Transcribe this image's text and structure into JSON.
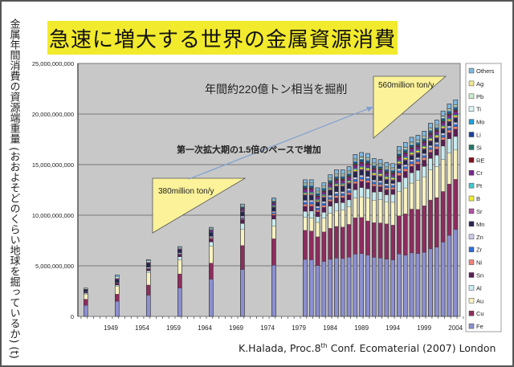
{
  "slide": {
    "title": "急速に増大する世界の金属資源消費",
    "credit_prefix": "K.Halada, Proc.8",
    "credit_sup": "th",
    "credit_suffix": " Conf. Ecomaterial (2007) London",
    "annotations": {
      "annual_excavation": "年間約220億トン相当を掘削",
      "growth_note": "第一次拡大期の1.5倍のペースで増加",
      "early_rate": "380million ton/y",
      "late_rate": "560million ton/y"
    },
    "colors": {
      "title_bg": "#f2ea2c",
      "plot_bg": "#c8c8c8",
      "triangle_fill": "#fbf29a",
      "arrow": "#7f9fcf"
    }
  },
  "chart_data": {
    "type": "bar",
    "stacked": true,
    "title": "急速に増大する世界の金属資源消費",
    "ylabel": "金属年間消費の資源端重量 (おおよそどのくらい地球を掘っているか) (t)",
    "xlabel": "",
    "ylim": [
      0,
      25000000000
    ],
    "yticks": [
      0,
      5000000000,
      10000000000,
      15000000000,
      20000000000,
      25000000000
    ],
    "ytick_labels": [
      "0",
      "5,000,000,000",
      "10,000,000,000",
      "15,000,000,000",
      "20,000,000,000",
      "25,000,000,000"
    ],
    "xlim": [
      1944,
      2005
    ],
    "xticks": [
      1949,
      1954,
      1959,
      1964,
      1969,
      1974,
      1979,
      1984,
      1989,
      1994,
      1999,
      2004
    ],
    "grid": true,
    "legend_position": "right",
    "legend": [
      "Others",
      "Ag",
      "Pb",
      "Ti",
      "Mo",
      "Li",
      "Si",
      "RE",
      "Cr",
      "Pt",
      "B",
      "Sr",
      "Mn",
      "Zn",
      "Zr",
      "Ni",
      "Sn",
      "Al",
      "Au",
      "Cu",
      "Fe"
    ],
    "series_colors": {
      "Fe": "#8c8fd0",
      "Cu": "#8e2c5e",
      "Au": "#f8f2c0",
      "Al": "#c8ecf0",
      "Sn": "#5a1d55",
      "Ni": "#f08078",
      "Zr": "#2c6ed8",
      "Zn": "#c8c8e8",
      "Mn": "#262650",
      "Sr": "#b050a0",
      "B": "#f0f030",
      "Pt": "#40c8d0",
      "Cr": "#782890",
      "RE": "#801020",
      "Si": "#207868",
      "Li": "#2040a0",
      "Mo": "#20a0d8",
      "Ti": "#dcf4f4",
      "Pb": "#c8ecd0",
      "Ag": "#f0e890",
      "Others": "#80b8e0"
    },
    "x": [
      1945,
      1950,
      1955,
      1960,
      1965,
      1970,
      1975,
      1980,
      1981,
      1982,
      1983,
      1984,
      1985,
      1986,
      1987,
      1988,
      1989,
      1990,
      1991,
      1992,
      1993,
      1994,
      1995,
      1996,
      1997,
      1998,
      1999,
      2000,
      2001,
      2002,
      2003,
      2004
    ],
    "totals": [
      2800000000,
      4100000000,
      5600000000,
      6900000000,
      8800000000,
      11100000000,
      11700000000,
      13500000000,
      13500000000,
      12700000000,
      13200000000,
      14000000000,
      14500000000,
      14500000000,
      14800000000,
      16000000000,
      16200000000,
      16100000000,
      15600000000,
      15500000000,
      15200000000,
      15100000000,
      16800000000,
      17200000000,
      17700000000,
      17900000000,
      18300000000,
      19100000000,
      19400000000,
      20300000000,
      21000000000,
      21400000000
    ],
    "series": [
      {
        "name": "Fe",
        "values": [
          1100000000,
          1500000000,
          2100000000,
          2800000000,
          3700000000,
          4700000000,
          5200000000,
          5700000000,
          5700000000,
          5300000000,
          5600000000,
          5700000000,
          5700000000,
          5700000000,
          5800000000,
          6000000000,
          6100000000,
          5900000000,
          5800000000,
          5800000000,
          5700000000,
          5700000000,
          5900000000,
          5900000000,
          6100000000,
          6100000000,
          6200000000,
          6500000000,
          6700000000,
          7200000000,
          7900000000,
          8300000000
        ]
      },
      {
        "name": "Cu",
        "values": [
          600000000,
          700000000,
          1000000000,
          1400000000,
          1600000000,
          2400000000,
          2700000000,
          2900000000,
          2900000000,
          3000000000,
          3000000000,
          3100000000,
          3100000000,
          3100000000,
          3200000000,
          3500000000,
          3500000000,
          3300000000,
          3400000000,
          3500000000,
          3500000000,
          3500000000,
          3600000000,
          4000000000,
          4200000000,
          4300000000,
          4500000000,
          4700000000,
          4800000000,
          4900000000,
          5000000000,
          4800000000
        ]
      },
      {
        "name": "Au",
        "values": [
          500000000,
          800000000,
          1200000000,
          1400000000,
          1700000000,
          1600000000,
          1300000000,
          1300000000,
          1300000000,
          1500000000,
          1400000000,
          1500000000,
          1500000000,
          1700000000,
          1700000000,
          1900000000,
          2000000000,
          2200000000,
          2200000000,
          2300000000,
          2200000000,
          2300000000,
          2300000000,
          2500000000,
          2500000000,
          2800000000,
          2800000000,
          2900000000,
          3000000000,
          3100000000,
          3000000000,
          2800000000
        ]
      },
      {
        "name": "Al",
        "values": [
          100000000,
          100000000,
          200000000,
          300000000,
          400000000,
          600000000,
          700000000,
          600000000,
          700000000,
          600000000,
          600000000,
          700000000,
          800000000,
          700000000,
          700000000,
          800000000,
          900000000,
          900000000,
          800000000,
          800000000,
          700000000,
          800000000,
          900000000,
          1000000000,
          1000000000,
          1000000000,
          1000000000,
          1100000000,
          1100000000,
          1300000000,
          1400000000,
          1300000000
        ]
      },
      {
        "name": "Sn",
        "values": [
          100000000,
          200000000,
          200000000,
          200000000,
          300000000,
          400000000,
          400000000,
          500000000,
          500000000,
          500000000,
          500000000,
          500000000,
          500000000,
          500000000,
          500000000,
          600000000,
          600000000,
          600000000,
          600000000,
          500000000,
          500000000,
          500000000,
          600000000,
          600000000,
          600000000,
          600000000,
          600000000,
          600000000,
          600000000,
          600000000,
          600000000,
          700000000
        ]
      },
      {
        "name": "Ni",
        "values": [
          0,
          0,
          50000000,
          50000000,
          100000000,
          100000000,
          150000000,
          200000000,
          200000000,
          200000000,
          200000000,
          200000000,
          200000000,
          200000000,
          200000000,
          200000000,
          200000000,
          200000000,
          200000000,
          200000000,
          200000000,
          200000000,
          250000000,
          250000000,
          250000000,
          250000000,
          250000000,
          250000000,
          250000000,
          250000000,
          250000000,
          250000000
        ]
      },
      {
        "name": "Zr",
        "values": [
          0,
          0,
          0,
          50000000,
          50000000,
          100000000,
          100000000,
          200000000,
          200000000,
          200000000,
          200000000,
          200000000,
          200000000,
          200000000,
          200000000,
          200000000,
          200000000,
          200000000,
          200000000,
          200000000,
          200000000,
          200000000,
          200000000,
          200000000,
          200000000,
          200000000,
          200000000,
          200000000,
          200000000,
          200000000,
          200000000,
          200000000
        ]
      },
      {
        "name": "Zn",
        "values": [
          50000000,
          50000000,
          100000000,
          100000000,
          100000000,
          150000000,
          150000000,
          200000000,
          200000000,
          200000000,
          200000000,
          200000000,
          200000000,
          200000000,
          200000000,
          200000000,
          200000000,
          200000000,
          200000000,
          200000000,
          200000000,
          200000000,
          200000000,
          200000000,
          200000000,
          200000000,
          200000000,
          200000000,
          200000000,
          200000000,
          200000000,
          200000000
        ]
      },
      {
        "name": "Mn",
        "values": [
          200000000,
          300000000,
          400000000,
          300000000,
          400000000,
          400000000,
          400000000,
          500000000,
          500000000,
          400000000,
          400000000,
          500000000,
          500000000,
          500000000,
          500000000,
          500000000,
          500000000,
          500000000,
          400000000,
          400000000,
          400000000,
          300000000,
          400000000,
          400000000,
          400000000,
          400000000,
          400000000,
          400000000,
          400000000,
          400000000,
          400000000,
          400000000
        ]
      },
      {
        "name": "Sr",
        "values": [
          0,
          0,
          0,
          0,
          0,
          50000000,
          50000000,
          100000000,
          100000000,
          100000000,
          100000000,
          100000000,
          100000000,
          100000000,
          100000000,
          100000000,
          100000000,
          100000000,
          100000000,
          100000000,
          100000000,
          100000000,
          100000000,
          100000000,
          100000000,
          100000000,
          100000000,
          100000000,
          100000000,
          100000000,
          100000000,
          100000000
        ]
      },
      {
        "name": "B",
        "values": [
          0,
          0,
          0,
          0,
          0,
          0,
          50000000,
          100000000,
          100000000,
          100000000,
          100000000,
          100000000,
          100000000,
          100000000,
          100000000,
          150000000,
          150000000,
          150000000,
          150000000,
          150000000,
          150000000,
          150000000,
          150000000,
          150000000,
          150000000,
          150000000,
          150000000,
          150000000,
          150000000,
          150000000,
          150000000,
          150000000
        ]
      },
      {
        "name": "Pt",
        "values": [
          0,
          0,
          0,
          0,
          50000000,
          50000000,
          100000000,
          100000000,
          100000000,
          100000000,
          100000000,
          100000000,
          100000000,
          100000000,
          100000000,
          100000000,
          100000000,
          100000000,
          100000000,
          100000000,
          100000000,
          100000000,
          100000000,
          100000000,
          100000000,
          100000000,
          100000000,
          100000000,
          100000000,
          100000000,
          100000000,
          100000000
        ]
      },
      {
        "name": "Cr",
        "values": [
          50000000,
          100000000,
          100000000,
          100000000,
          150000000,
          200000000,
          200000000,
          300000000,
          300000000,
          250000000,
          250000000,
          300000000,
          300000000,
          300000000,
          300000000,
          300000000,
          300000000,
          300000000,
          300000000,
          300000000,
          300000000,
          300000000,
          300000000,
          300000000,
          300000000,
          300000000,
          300000000,
          300000000,
          300000000,
          300000000,
          300000000,
          300000000
        ]
      },
      {
        "name": "RE",
        "values": [
          0,
          0,
          0,
          0,
          0,
          50000000,
          50000000,
          100000000,
          100000000,
          100000000,
          100000000,
          100000000,
          100000000,
          100000000,
          100000000,
          100000000,
          100000000,
          100000000,
          100000000,
          100000000,
          100000000,
          100000000,
          100000000,
          100000000,
          100000000,
          100000000,
          100000000,
          100000000,
          100000000,
          100000000,
          100000000,
          100000000
        ]
      },
      {
        "name": "Si",
        "values": [
          0,
          0,
          0,
          0,
          50000000,
          50000000,
          50000000,
          100000000,
          100000000,
          100000000,
          100000000,
          100000000,
          100000000,
          100000000,
          100000000,
          100000000,
          100000000,
          100000000,
          100000000,
          100000000,
          100000000,
          100000000,
          100000000,
          100000000,
          100000000,
          100000000,
          100000000,
          100000000,
          100000000,
          100000000,
          100000000,
          100000000
        ]
      },
      {
        "name": "Li",
        "values": [
          0,
          0,
          0,
          0,
          0,
          50000000,
          50000000,
          100000000,
          100000000,
          100000000,
          100000000,
          100000000,
          100000000,
          100000000,
          100000000,
          100000000,
          100000000,
          100000000,
          100000000,
          100000000,
          100000000,
          100000000,
          100000000,
          100000000,
          100000000,
          100000000,
          100000000,
          100000000,
          100000000,
          100000000,
          100000000,
          100000000
        ]
      },
      {
        "name": "Mo",
        "values": [
          0,
          0,
          0,
          0,
          50000000,
          50000000,
          50000000,
          100000000,
          100000000,
          100000000,
          100000000,
          100000000,
          100000000,
          100000000,
          100000000,
          100000000,
          100000000,
          100000000,
          100000000,
          100000000,
          100000000,
          100000000,
          100000000,
          100000000,
          100000000,
          100000000,
          100000000,
          100000000,
          100000000,
          100000000,
          100000000,
          100000000
        ]
      },
      {
        "name": "Ti",
        "values": [
          0,
          0,
          0,
          0,
          0,
          50000000,
          50000000,
          100000000,
          100000000,
          100000000,
          100000000,
          100000000,
          100000000,
          100000000,
          100000000,
          100000000,
          100000000,
          100000000,
          100000000,
          100000000,
          100000000,
          100000000,
          100000000,
          100000000,
          100000000,
          100000000,
          100000000,
          100000000,
          100000000,
          100000000,
          100000000,
          100000000
        ]
      },
      {
        "name": "Pb",
        "values": [
          100000000,
          150000000,
          150000000,
          100000000,
          100000000,
          100000000,
          100000000,
          100000000,
          100000000,
          100000000,
          100000000,
          100000000,
          100000000,
          100000000,
          100000000,
          100000000,
          100000000,
          100000000,
          100000000,
          100000000,
          100000000,
          100000000,
          100000000,
          100000000,
          100000000,
          100000000,
          100000000,
          100000000,
          100000000,
          100000000,
          100000000,
          100000000
        ]
      },
      {
        "name": "Ag",
        "values": [
          0,
          0,
          0,
          0,
          0,
          0,
          0,
          50000000,
          50000000,
          50000000,
          50000000,
          50000000,
          50000000,
          50000000,
          50000000,
          50000000,
          50000000,
          50000000,
          50000000,
          50000000,
          50000000,
          50000000,
          50000000,
          50000000,
          50000000,
          50000000,
          50000000,
          50000000,
          50000000,
          50000000,
          50000000,
          50000000
        ]
      },
      {
        "name": "Others",
        "values": [
          0,
          200000000,
          100000000,
          100000000,
          100000000,
          150000000,
          200000000,
          300000000,
          300000000,
          300000000,
          300000000,
          300000000,
          400000000,
          400000000,
          400000000,
          400000000,
          400000000,
          400000000,
          400000000,
          400000000,
          400000000,
          400000000,
          400000000,
          450000000,
          450000000,
          450000000,
          450000000,
          450000000,
          450000000,
          450000000,
          450000000,
          450000000
        ]
      }
    ]
  }
}
